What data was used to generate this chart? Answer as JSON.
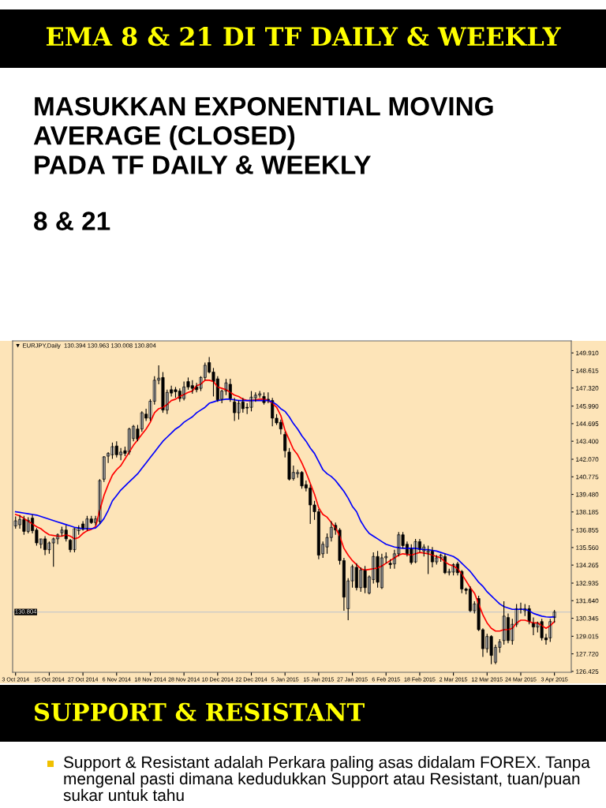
{
  "chart_data": {
    "type": "candlestick",
    "title": "EMA 8 & 21 DI TF DAILY & WEEKLY",
    "subtitle": "MASUKKAN EXPONENTIAL MOVING\nAVERAGE (CLOSED)\nPADA TF DAILY & WEEKLY",
    "annotations": [
      "8 & 21",
      "▼ EURJPY,Daily  130.394 130.963 130.008 130.804",
      "SUPPORT & RESISTANT",
      "Support & Resistant adalah Perkara paling asas didalam FOREX. Tanpa mengenal pasti dimana kedudukkan Support atau Resistant, tuan/puan sukar untuk tahu"
    ],
    "categories": [
      "3 Oct 2014",
      null,
      null,
      null,
      null,
      null,
      null,
      null,
      "15 Oct 2014",
      null,
      null,
      null,
      null,
      null,
      null,
      null,
      "27 Oct 2014",
      null,
      null,
      null,
      null,
      null,
      null,
      null,
      "6 Nov 2014",
      null,
      null,
      null,
      null,
      null,
      null,
      null,
      "18 Nov 2014",
      null,
      null,
      null,
      null,
      null,
      null,
      null,
      "28 Nov 2014",
      null,
      null,
      null,
      null,
      null,
      null,
      null,
      "10 Dec 2014",
      null,
      null,
      null,
      null,
      null,
      null,
      null,
      "22 Dec 2014",
      null,
      null,
      null,
      null,
      null,
      null,
      null,
      "5 Jan 2015",
      null,
      null,
      null,
      null,
      null,
      null,
      null,
      "15 Jan 2015",
      null,
      null,
      null,
      null,
      null,
      null,
      null,
      "27 Jan 2015",
      null,
      null,
      null,
      null,
      null,
      null,
      null,
      "6 Feb 2015",
      null,
      null,
      null,
      null,
      null,
      null,
      null,
      "18 Feb 2015",
      null,
      null,
      null,
      null,
      null,
      null,
      null,
      "2 Mar 2015",
      null,
      null,
      null,
      null,
      null,
      null,
      null,
      "12 Mar 2015",
      null,
      null,
      null,
      null,
      null,
      null,
      null,
      "24 Mar 2015",
      null,
      null,
      null,
      null,
      null,
      null,
      null,
      "3 Apr 2015"
    ],
    "ohlc": [
      [
        137.15,
        137.85,
        136.95,
        137.53
      ],
      [
        137.24,
        137.95,
        136.95,
        137.63
      ],
      [
        137.63,
        137.9,
        136.5,
        136.75
      ],
      [
        136.75,
        137.8,
        136.6,
        137.57
      ],
      [
        137.73,
        138.0,
        136.6,
        136.8
      ],
      [
        136.85,
        137.0,
        135.7,
        135.9
      ],
      [
        135.8,
        136.2,
        135.5,
        136.2
      ],
      [
        136.2,
        136.4,
        135.0,
        135.4
      ],
      [
        135.4,
        136.0,
        135.1,
        135.9
      ],
      [
        135.9,
        136.3,
        134.14,
        136.2
      ],
      [
        136.2,
        136.6,
        135.8,
        136.5
      ],
      [
        136.65,
        137.1,
        136.4,
        136.85
      ],
      [
        136.85,
        137.2,
        136.0,
        136.2
      ],
      [
        136.1,
        136.2,
        135.2,
        135.4
      ],
      [
        135.4,
        137.0,
        135.2,
        136.95
      ],
      [
        136.8,
        137.2,
        136.5,
        137.0
      ],
      [
        137.3,
        137.5,
        136.8,
        136.9
      ],
      [
        136.95,
        137.9,
        136.8,
        137.67
      ],
      [
        137.67,
        137.9,
        137.3,
        137.4
      ],
      [
        137.4,
        137.9,
        137.2,
        137.67
      ],
      [
        137.5,
        140.6,
        137.3,
        140.5
      ],
      [
        140.6,
        142.3,
        140.4,
        142.25
      ],
      [
        142.3,
        142.6,
        141.8,
        142.5
      ],
      [
        142.4,
        143.3,
        142.1,
        143.0
      ],
      [
        143.05,
        143.4,
        142.2,
        142.4
      ],
      [
        142.4,
        142.9,
        142.0,
        142.6
      ],
      [
        142.7,
        143.0,
        142.3,
        142.5
      ],
      [
        142.6,
        144.4,
        142.4,
        144.3
      ],
      [
        143.6,
        144.6,
        143.4,
        144.5
      ],
      [
        144.3,
        144.6,
        143.4,
        143.55
      ],
      [
        144.3,
        145.6,
        144.1,
        145.5
      ],
      [
        145.4,
        145.8,
        144.9,
        145.1
      ],
      [
        145.1,
        146.5,
        144.9,
        146.35
      ],
      [
        146.35,
        148.2,
        146.1,
        147.9
      ],
      [
        147.9,
        149.0,
        147.6,
        148.05
      ],
      [
        148.1,
        148.5,
        145.5,
        145.7
      ],
      [
        145.7,
        147.2,
        145.4,
        147.0
      ],
      [
        147.2,
        147.5,
        146.7,
        146.95
      ],
      [
        147.2,
        147.4,
        146.6,
        147.05
      ],
      [
        147.1,
        147.3,
        146.3,
        146.55
      ],
      [
        146.55,
        147.8,
        146.4,
        147.4
      ],
      [
        147.8,
        148.1,
        147.2,
        147.4
      ],
      [
        147.5,
        147.9,
        146.9,
        147.3
      ],
      [
        147.4,
        147.7,
        147.0,
        147.2
      ],
      [
        147.3,
        148.2,
        147.1,
        148.1
      ],
      [
        148.1,
        149.2,
        147.9,
        149.0
      ],
      [
        149.2,
        149.6,
        148.4,
        148.5
      ],
      [
        148.5,
        148.8,
        146.7,
        147.8
      ],
      [
        148.0,
        148.2,
        146.3,
        146.45
      ],
      [
        146.5,
        147.2,
        146.2,
        147.1
      ],
      [
        147.1,
        148.0,
        146.8,
        147.7
      ],
      [
        147.6,
        148.0,
        146.3,
        146.55
      ],
      [
        146.3,
        146.6,
        144.9,
        145.5
      ],
      [
        145.5,
        146.4,
        145.0,
        146.2
      ],
      [
        146.3,
        146.6,
        145.5,
        145.8
      ],
      [
        145.9,
        146.2,
        145.4,
        145.85
      ],
      [
        145.9,
        147.1,
        145.6,
        146.65
      ],
      [
        146.6,
        147.0,
        146.3,
        146.8
      ],
      [
        146.8,
        147.1,
        146.6,
        146.9
      ],
      [
        146.7,
        147.0,
        146.1,
        146.25
      ],
      [
        146.5,
        147.0,
        146.2,
        146.4
      ],
      [
        146.4,
        146.6,
        144.5,
        145.1
      ],
      [
        145.1,
        145.4,
        144.6,
        144.75
      ],
      [
        144.8,
        145.0,
        143.9,
        144.3
      ],
      [
        143.9,
        144.1,
        142.2,
        142.7
      ],
      [
        142.6,
        142.9,
        140.5,
        140.6
      ],
      [
        140.65,
        141.6,
        140.5,
        141.1
      ],
      [
        141.0,
        141.3,
        140.7,
        141.1
      ],
      [
        141.1,
        141.2,
        139.9,
        140.1
      ],
      [
        140.2,
        140.5,
        139.7,
        139.95
      ],
      [
        139.95,
        140.2,
        137.3,
        138.7
      ],
      [
        138.7,
        139.0,
        137.6,
        138.2
      ],
      [
        138.2,
        138.4,
        134.7,
        135.0
      ],
      [
        135.1,
        136.0,
        134.8,
        135.8
      ],
      [
        135.6,
        136.6,
        135.1,
        136.3
      ],
      [
        136.3,
        137.5,
        136.0,
        137.05
      ],
      [
        137.2,
        137.4,
        136.5,
        136.85
      ],
      [
        136.85,
        137.0,
        134.3,
        134.6
      ],
      [
        134.6,
        134.8,
        130.9,
        131.9
      ],
      [
        131.05,
        133.3,
        130.2,
        133.1
      ],
      [
        133.1,
        134.3,
        132.6,
        134.15
      ],
      [
        134.1,
        134.4,
        132.4,
        132.6
      ],
      [
        132.6,
        134.1,
        132.3,
        133.9
      ],
      [
        133.9,
        134.2,
        132.2,
        132.6
      ],
      [
        132.2,
        133.5,
        132.1,
        133.4
      ],
      [
        133.2,
        135.2,
        132.9,
        134.9
      ],
      [
        134.9,
        135.3,
        132.6,
        133.0
      ],
      [
        132.6,
        135.1,
        132.5,
        134.8
      ],
      [
        134.8,
        135.2,
        134.4,
        134.9
      ],
      [
        134.4,
        134.7,
        134.0,
        134.3
      ],
      [
        134.35,
        135.4,
        134.0,
        135.1
      ],
      [
        135.1,
        136.7,
        134.9,
        136.5
      ],
      [
        136.5,
        136.7,
        135.5,
        135.7
      ],
      [
        135.8,
        136.0,
        134.9,
        135.1
      ],
      [
        135.5,
        135.8,
        134.3,
        134.45
      ],
      [
        134.5,
        136.2,
        134.4,
        136.0
      ],
      [
        136.0,
        136.2,
        135.2,
        135.4
      ],
      [
        135.3,
        135.8,
        134.9,
        135.6
      ],
      [
        135.2,
        135.7,
        133.6,
        135.3
      ],
      [
        135.3,
        135.6,
        134.1,
        134.5
      ],
      [
        134.5,
        135.0,
        134.3,
        134.8
      ],
      [
        134.8,
        135.1,
        134.5,
        135.0
      ],
      [
        134.9,
        135.1,
        133.6,
        133.7
      ],
      [
        133.7,
        134.0,
        133.5,
        133.8
      ],
      [
        133.75,
        134.4,
        133.5,
        134.3
      ],
      [
        134.35,
        134.5,
        133.5,
        133.7
      ],
      [
        133.8,
        133.9,
        132.2,
        132.5
      ],
      [
        132.5,
        132.6,
        132.1,
        132.4
      ],
      [
        132.5,
        132.7,
        130.8,
        130.9
      ],
      [
        130.9,
        131.6,
        130.7,
        131.4
      ],
      [
        131.8,
        132.0,
        129.4,
        129.5
      ],
      [
        129.5,
        129.6,
        127.5,
        128.1
      ],
      [
        128.1,
        129.2,
        127.8,
        129.0
      ],
      [
        129.0,
        129.1,
        126.95,
        127.6
      ],
      [
        127.1,
        128.4,
        126.95,
        128.2
      ],
      [
        128.2,
        128.8,
        127.8,
        128.6
      ],
      [
        128.7,
        131.6,
        128.4,
        130.5
      ],
      [
        130.4,
        130.7,
        128.5,
        128.7
      ],
      [
        128.7,
        130.3,
        128.4,
        129.9
      ],
      [
        129.9,
        131.4,
        129.7,
        131.05
      ],
      [
        131.0,
        131.5,
        130.7,
        131.05
      ],
      [
        130.9,
        131.4,
        130.5,
        131.05
      ],
      [
        131.05,
        131.3,
        129.9,
        130.1
      ],
      [
        130.0,
        130.4,
        129.1,
        129.7
      ],
      [
        129.7,
        130.1,
        129.3,
        130.0
      ],
      [
        130.1,
        130.3,
        128.7,
        128.9
      ],
      [
        128.9,
        129.2,
        128.4,
        128.75
      ],
      [
        128.9,
        130.3,
        128.6,
        130.1
      ],
      [
        130.394,
        130.963,
        130.008,
        130.804
      ]
    ],
    "series": [
      {
        "type": "line",
        "color": "#ff0000",
        "values": [
          138.0,
          137.9,
          137.7,
          137.5,
          137.3,
          137.1,
          136.95,
          136.7,
          136.5,
          136.45,
          136.4,
          136.4,
          136.5,
          136.4,
          136.2,
          136.3,
          136.6,
          136.8,
          136.9,
          137.1,
          138.3,
          139.4,
          140.2,
          140.9,
          141.3,
          141.6,
          142.1,
          142.6,
          143.1,
          143.5,
          143.9,
          144.3,
          144.8,
          145.5,
          145.8,
          145.9,
          146.1,
          146.4,
          146.5,
          146.7,
          146.85,
          147.0,
          147.1,
          147.5,
          147.6,
          147.9,
          147.9,
          147.8,
          147.4,
          147.3,
          147.2,
          147.0,
          146.8,
          146.7,
          146.5,
          146.4,
          146.4,
          146.45,
          146.5,
          146.5,
          146.4,
          146.2,
          145.9,
          145.3,
          144.2,
          143.5,
          142.8,
          142.4,
          141.8,
          141.1,
          140.3,
          139.5,
          138.5,
          138.0,
          137.8,
          137.4,
          137.0,
          136.4,
          135.5,
          135.0,
          134.6,
          134.3,
          134.0,
          133.9,
          133.95,
          134.0,
          134.05,
          134.2,
          134.4,
          134.6,
          134.8,
          135.0,
          135.1,
          135.05,
          135.0,
          135.1,
          135.2,
          135.15,
          135.1,
          135.0,
          134.9,
          134.8,
          134.5,
          134.3,
          134.2,
          134.0,
          133.6,
          133.1,
          132.6,
          132.2,
          131.4,
          130.6,
          130.0,
          129.6,
          129.4,
          129.4,
          129.5,
          129.5,
          129.6,
          130.0,
          130.2,
          130.2,
          130.1,
          130.0,
          130.0,
          129.8,
          129.6,
          129.8,
          130.1
        ]
      },
      {
        "type": "line",
        "color": "#0000ff",
        "values": [
          138.2,
          138.15,
          138.1,
          138.05,
          138.0,
          137.95,
          137.85,
          137.75,
          137.65,
          137.55,
          137.45,
          137.35,
          137.25,
          137.15,
          137.05,
          137.0,
          136.95,
          136.95,
          136.95,
          137.0,
          137.3,
          137.7,
          138.3,
          139.0,
          139.4,
          139.8,
          140.1,
          140.4,
          140.7,
          141.0,
          141.4,
          141.8,
          142.2,
          142.6,
          143.0,
          143.4,
          143.7,
          144.0,
          144.3,
          144.5,
          144.8,
          145.0,
          145.2,
          145.5,
          145.7,
          145.9,
          146.2,
          146.3,
          146.4,
          146.45,
          146.5,
          146.5,
          146.45,
          146.4,
          146.4,
          146.4,
          146.4,
          146.4,
          146.4,
          146.4,
          146.4,
          146.3,
          146.1,
          145.8,
          145.6,
          145.2,
          144.7,
          144.3,
          143.8,
          143.4,
          142.9,
          142.5,
          141.9,
          141.3,
          141.0,
          140.8,
          140.5,
          140.1,
          139.7,
          139.2,
          138.6,
          138.2,
          137.5,
          137.0,
          136.6,
          136.4,
          136.2,
          136.0,
          135.8,
          135.7,
          135.6,
          135.55,
          135.5,
          135.5,
          135.5,
          135.5,
          135.45,
          135.4,
          135.4,
          135.35,
          135.3,
          135.2,
          135.1,
          135.0,
          134.9,
          134.7,
          134.4,
          134.1,
          133.8,
          133.4,
          133.0,
          132.7,
          132.3,
          132.0,
          131.7,
          131.4,
          131.2,
          131.1,
          131.0,
          131.0,
          131.0,
          131.0,
          130.9,
          130.7,
          130.6,
          130.5,
          130.45,
          130.43,
          130.45
        ]
      }
    ],
    "ylim": [
      126.36,
      150.8
    ],
    "yticks": [
      {
        "value": 149.91,
        "label": "149.910"
      },
      148.615,
      {
        "value": 147.32,
        "label": "147.320"
      },
      {
        "value": 145.99,
        "label": "145.990"
      },
      144.695,
      {
        "value": 143.4,
        "label": "143.400"
      },
      {
        "value": 142.07,
        "label": "142.070"
      },
      140.775,
      {
        "value": 139.48,
        "label": "139.480"
      },
      138.185,
      136.855,
      {
        "value": 135.56,
        "label": "135.560"
      },
      134.265,
      132.935,
      {
        "value": 131.64,
        "label": "131.640"
      },
      130.345,
      {
        "value": 129.015,
        "label": "129.015"
      },
      {
        "value": 127.72,
        "label": "127.720"
      },
      126.425
    ],
    "ref_lines": [
      {
        "axis": "y",
        "value": 130.804,
        "label": "130.804",
        "color": "#c8c8c8"
      }
    ],
    "grid": false,
    "legend": false
  }
}
